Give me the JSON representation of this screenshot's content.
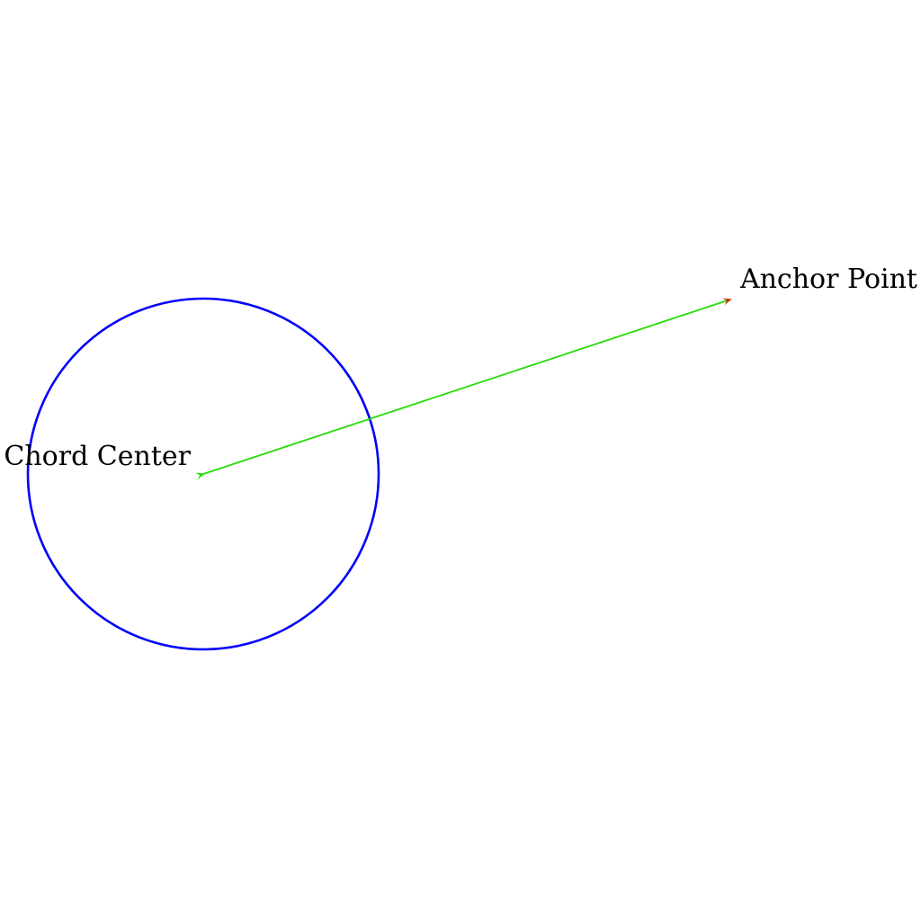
{
  "labels": {
    "center": "Chord Center",
    "anchor": "Anchor Point"
  },
  "colors": {
    "circle": "#0000ff",
    "vector": "#22dd00",
    "vector_tip": "#cc3300",
    "text": "#000000",
    "background": "#ffffff"
  }
}
